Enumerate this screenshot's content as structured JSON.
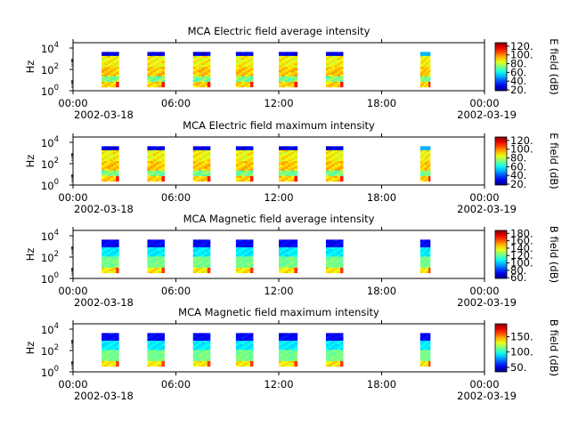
{
  "chart_data": [
    {
      "type": "heatmap",
      "title": "MCA  Electric field average intensity",
      "ylabel": "Hz",
      "colorbar_label": "E field (dB)",
      "colorbar_ticks": [
        "20.",
        "40.",
        "60.",
        "80.",
        "100.",
        "120."
      ],
      "colorbar_range": [
        18,
        128
      ],
      "y_ticks": [
        {
          "exp": "0",
          "value": 1
        },
        {
          "exp": "2",
          "value": 100
        },
        {
          "exp": "4",
          "value": 10000
        }
      ],
      "y_base": "10",
      "ylim": [
        1,
        31623
      ],
      "yscale": "log",
      "x_range_hours": [
        0,
        24
      ],
      "x_ticks": [
        "00:00",
        "06:00",
        "12:00",
        "18:00",
        "00:00"
      ],
      "x_date_left": "2002-03-18",
      "x_date_right": "2002-03-19",
      "profile": "electric",
      "passes": [
        {
          "start": "2002-03-18 01:40",
          "end": "2002-03-18 02:40",
          "top_level": 30
        },
        {
          "start": "2002-03-18 04:20",
          "end": "2002-03-18 05:20",
          "top_level": 30
        },
        {
          "start": "2002-03-18 07:00",
          "end": "2002-03-18 08:00",
          "top_level": 30
        },
        {
          "start": "2002-03-18 09:30",
          "end": "2002-03-18 10:30",
          "top_level": 30
        },
        {
          "start": "2002-03-18 12:00",
          "end": "2002-03-18 13:05",
          "top_level": 30
        },
        {
          "start": "2002-03-18 14:45",
          "end": "2002-03-18 15:45",
          "top_level": 30
        },
        {
          "start": "2002-03-18 20:15",
          "end": "2002-03-18 20:50",
          "top_level": 45
        }
      ]
    },
    {
      "type": "heatmap",
      "title": "MCA  Electric field maximum intensity",
      "ylabel": "Hz",
      "colorbar_label": "E field (dB)",
      "colorbar_ticks": [
        "20.",
        "40.",
        "60.",
        "80.",
        "100.",
        "120."
      ],
      "colorbar_range": [
        18,
        128
      ],
      "y_ticks": [
        {
          "exp": "0",
          "value": 1
        },
        {
          "exp": "2",
          "value": 100
        },
        {
          "exp": "4",
          "value": 10000
        }
      ],
      "y_base": "10",
      "ylim": [
        1,
        31623
      ],
      "yscale": "log",
      "x_range_hours": [
        0,
        24
      ],
      "x_ticks": [
        "00:00",
        "06:00",
        "12:00",
        "18:00",
        "00:00"
      ],
      "x_date_left": "2002-03-18",
      "x_date_right": "2002-03-19",
      "profile": "electric",
      "passes": [
        {
          "start": "2002-03-18 01:40",
          "end": "2002-03-18 02:40",
          "top_level": 42
        },
        {
          "start": "2002-03-18 04:20",
          "end": "2002-03-18 05:20",
          "top_level": 42
        },
        {
          "start": "2002-03-18 07:00",
          "end": "2002-03-18 08:00",
          "top_level": 42
        },
        {
          "start": "2002-03-18 09:30",
          "end": "2002-03-18 10:30",
          "top_level": 42
        },
        {
          "start": "2002-03-18 12:00",
          "end": "2002-03-18 13:05",
          "top_level": 42
        },
        {
          "start": "2002-03-18 14:45",
          "end": "2002-03-18 15:45",
          "top_level": 42
        },
        {
          "start": "2002-03-18 20:15",
          "end": "2002-03-18 20:50",
          "top_level": 30
        }
      ]
    },
    {
      "type": "heatmap",
      "title": "MCA  Magnetic field average intensity",
      "ylabel": "Hz",
      "colorbar_label": "B field (dB)",
      "colorbar_ticks": [
        "60.",
        "80.",
        "100.",
        "120.",
        "140.",
        "160.",
        "180."
      ],
      "colorbar_range": [
        58,
        188
      ],
      "y_ticks": [
        {
          "exp": "0",
          "value": 1
        },
        {
          "exp": "2",
          "value": 100
        },
        {
          "exp": "4",
          "value": 10000
        }
      ],
      "y_base": "10",
      "ylim": [
        1,
        31623
      ],
      "yscale": "log",
      "x_range_hours": [
        0,
        24
      ],
      "x_ticks": [
        "00:00",
        "06:00",
        "12:00",
        "18:00",
        "00:00"
      ],
      "x_date_left": "2002-03-18",
      "x_date_right": "2002-03-19",
      "profile": "magnetic",
      "passes": [
        {
          "start": "2002-03-18 01:40",
          "end": "2002-03-18 02:40",
          "top_level": 62
        },
        {
          "start": "2002-03-18 04:20",
          "end": "2002-03-18 05:20",
          "top_level": 62
        },
        {
          "start": "2002-03-18 07:00",
          "end": "2002-03-18 08:00",
          "top_level": 62
        },
        {
          "start": "2002-03-18 09:30",
          "end": "2002-03-18 10:30",
          "top_level": 62
        },
        {
          "start": "2002-03-18 12:00",
          "end": "2002-03-18 13:05",
          "top_level": 62
        },
        {
          "start": "2002-03-18 14:45",
          "end": "2002-03-18 15:45",
          "top_level": 62
        },
        {
          "start": "2002-03-18 20:15",
          "end": "2002-03-18 20:50",
          "top_level": 62
        }
      ]
    },
    {
      "type": "heatmap",
      "title": "MCA  Magnetic field maximum intensity",
      "ylabel": "Hz",
      "colorbar_label": "B field (dB)",
      "colorbar_ticks": [
        "50.",
        "100.",
        "150."
      ],
      "colorbar_range": [
        35,
        192
      ],
      "y_ticks": [
        {
          "exp": "0",
          "value": 1
        },
        {
          "exp": "2",
          "value": 100
        },
        {
          "exp": "4",
          "value": 10000
        }
      ],
      "y_base": "10",
      "ylim": [
        1,
        31623
      ],
      "yscale": "log",
      "x_range_hours": [
        0,
        24
      ],
      "x_ticks": [
        "00:00",
        "06:00",
        "12:00",
        "18:00",
        "00:00"
      ],
      "x_date_left": "2002-03-18",
      "x_date_right": "2002-03-19",
      "profile": "magnetic",
      "passes": [
        {
          "start": "2002-03-18 01:40",
          "end": "2002-03-18 02:40",
          "top_level": 80
        },
        {
          "start": "2002-03-18 04:20",
          "end": "2002-03-18 05:20",
          "top_level": 80
        },
        {
          "start": "2002-03-18 07:00",
          "end": "2002-03-18 08:00",
          "top_level": 80
        },
        {
          "start": "2002-03-18 09:30",
          "end": "2002-03-18 10:30",
          "top_level": 80
        },
        {
          "start": "2002-03-18 12:00",
          "end": "2002-03-18 13:05",
          "top_level": 80
        },
        {
          "start": "2002-03-18 14:45",
          "end": "2002-03-18 15:45",
          "top_level": 80
        },
        {
          "start": "2002-03-18 20:15",
          "end": "2002-03-18 20:50",
          "top_level": 80
        }
      ]
    }
  ]
}
